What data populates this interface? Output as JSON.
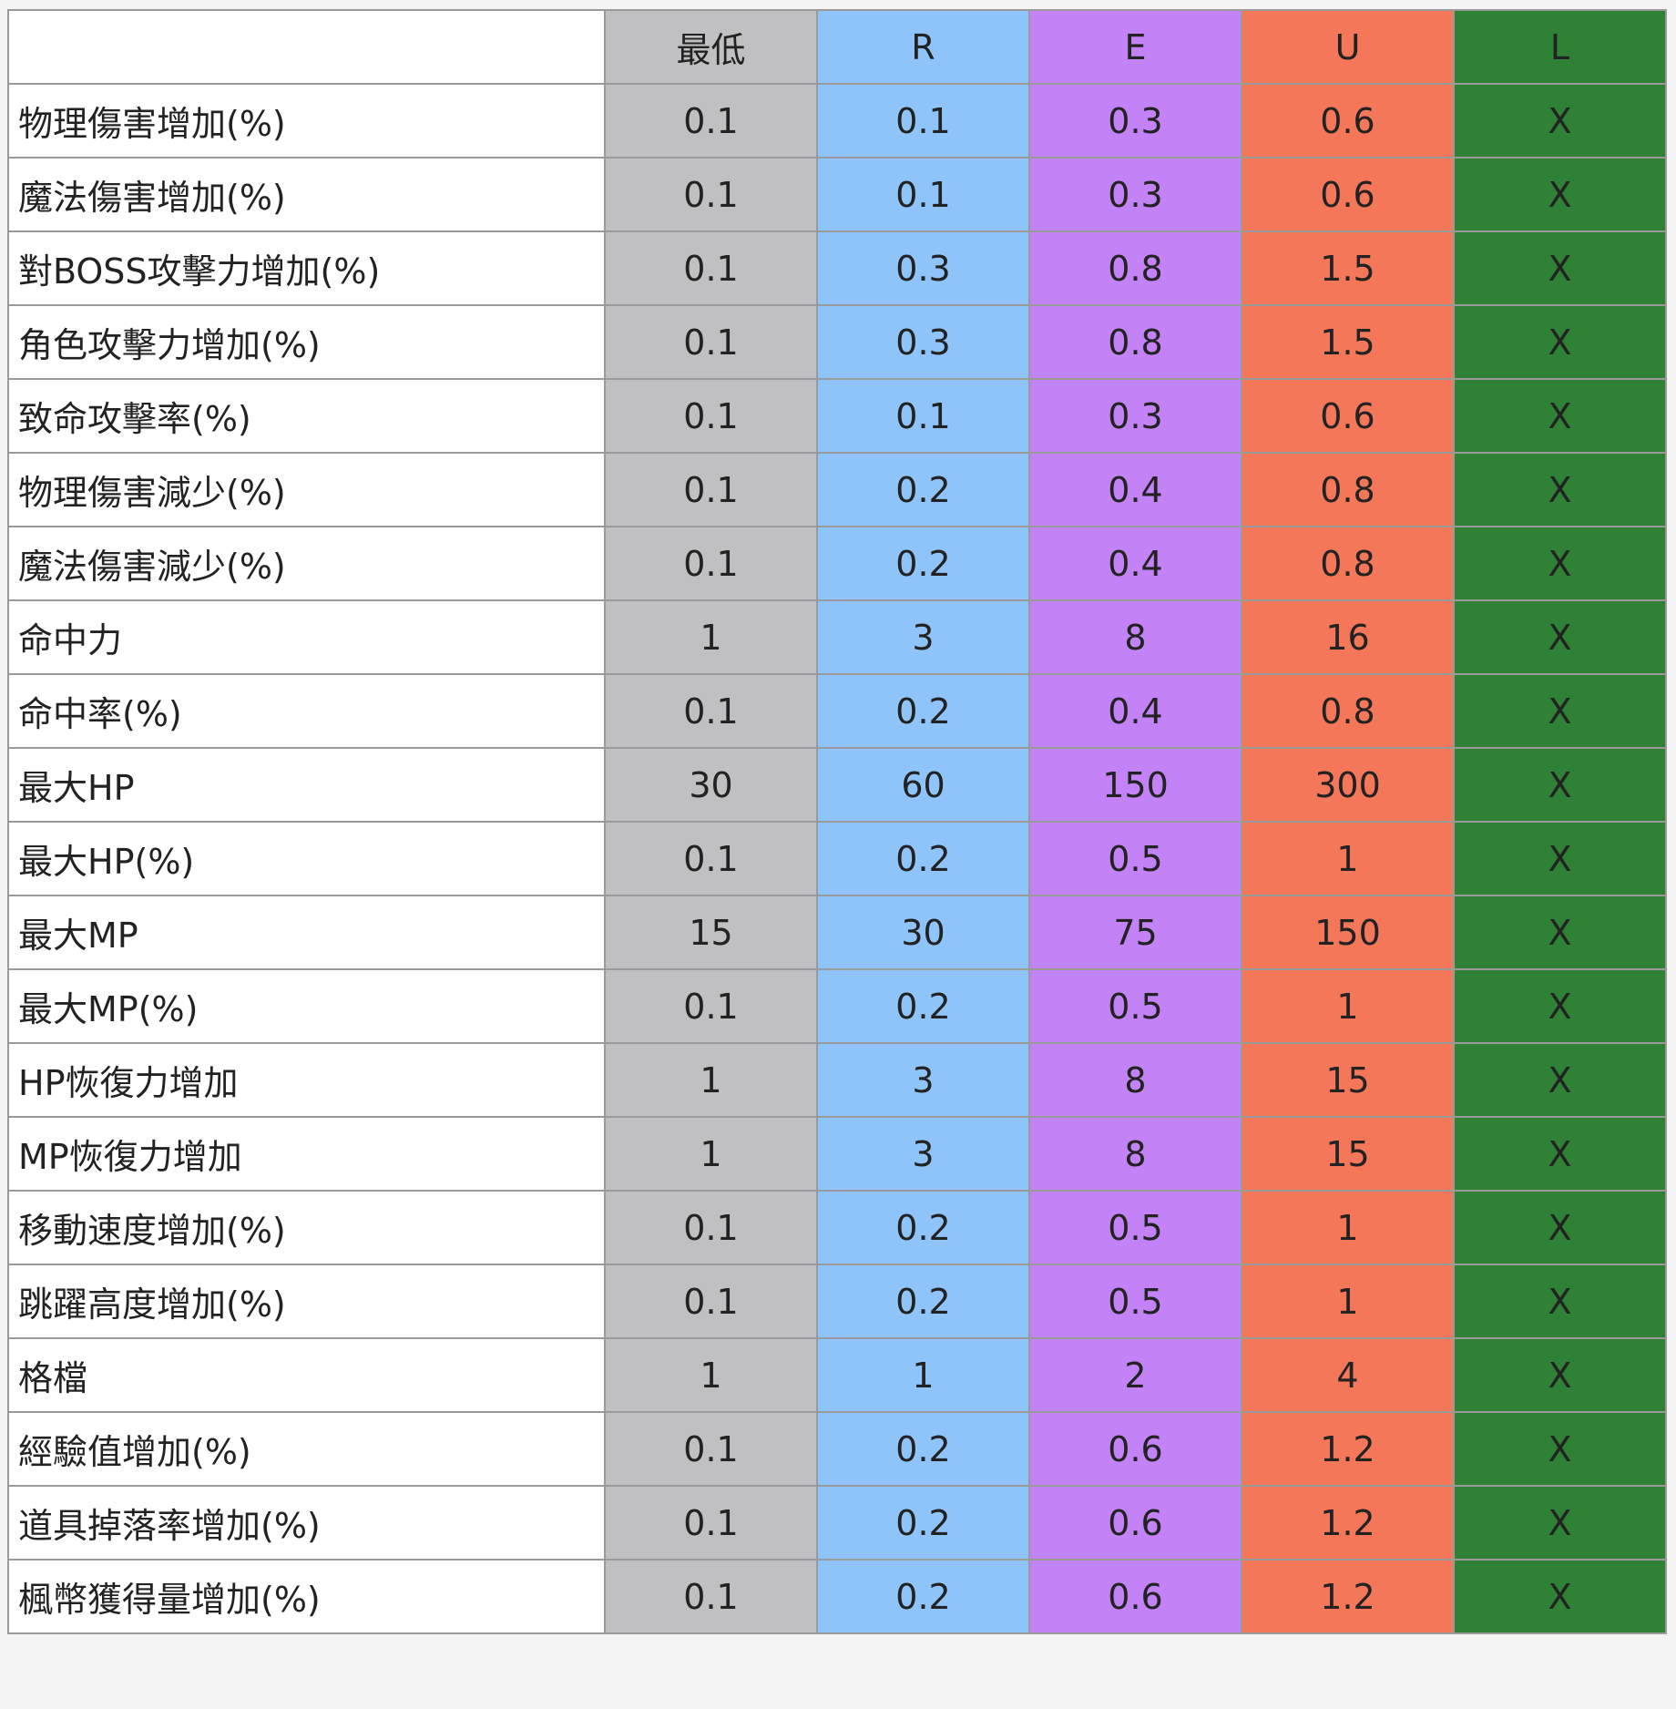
{
  "table": {
    "corner": "",
    "columns": [
      "最低",
      "R",
      "E",
      "U",
      "L"
    ],
    "column_colors": [
      "#c0bfc1",
      "#8fc4fb",
      "#c382f5",
      "#f5775a",
      "#2f8135"
    ],
    "highlight_color": "#f7bd13",
    "rows": [
      {
        "name": "物理傷害增加(%)",
        "values": [
          "0.1",
          "0.1",
          "0.3",
          "0.6",
          "X"
        ],
        "highlight": true
      },
      {
        "name": "魔法傷害增加(%)",
        "values": [
          "0.1",
          "0.1",
          "0.3",
          "0.6",
          "X"
        ],
        "highlight": true
      },
      {
        "name": "對BOSS攻擊力增加(%)",
        "values": [
          "0.1",
          "0.3",
          "0.8",
          "1.5",
          "X"
        ],
        "highlight": true
      },
      {
        "name": "角色攻擊力增加(%)",
        "values": [
          "0.1",
          "0.3",
          "0.8",
          "1.5",
          "X"
        ],
        "highlight": false
      },
      {
        "name": "致命攻擊率(%)",
        "values": [
          "0.1",
          "0.1",
          "0.3",
          "0.6",
          "X"
        ],
        "highlight": false
      },
      {
        "name": "物理傷害減少(%)",
        "values": [
          "0.1",
          "0.2",
          "0.4",
          "0.8",
          "X"
        ],
        "highlight": false
      },
      {
        "name": "魔法傷害減少(%)",
        "values": [
          "0.1",
          "0.2",
          "0.4",
          "0.8",
          "X"
        ],
        "highlight": false
      },
      {
        "name": "命中力",
        "values": [
          "1",
          "3",
          "8",
          "16",
          "X"
        ],
        "highlight": false
      },
      {
        "name": "命中率(%)",
        "values": [
          "0.1",
          "0.2",
          "0.4",
          "0.8",
          "X"
        ],
        "highlight": false
      },
      {
        "name": "最大HP",
        "values": [
          "30",
          "60",
          "150",
          "300",
          "X"
        ],
        "highlight": false
      },
      {
        "name": "最大HP(%)",
        "values": [
          "0.1",
          "0.2",
          "0.5",
          "1",
          "X"
        ],
        "highlight": false
      },
      {
        "name": "最大MP",
        "values": [
          "15",
          "30",
          "75",
          "150",
          "X"
        ],
        "highlight": false
      },
      {
        "name": "最大MP(%)",
        "values": [
          "0.1",
          "0.2",
          "0.5",
          "1",
          "X"
        ],
        "highlight": false
      },
      {
        "name": "HP恢復力增加",
        "values": [
          "1",
          "3",
          "8",
          "15",
          "X"
        ],
        "highlight": false
      },
      {
        "name": "MP恢復力增加",
        "values": [
          "1",
          "3",
          "8",
          "15",
          "X"
        ],
        "highlight": false
      },
      {
        "name": "移動速度增加(%)",
        "values": [
          "0.1",
          "0.2",
          "0.5",
          "1",
          "X"
        ],
        "highlight": false
      },
      {
        "name": "跳躍高度增加(%)",
        "values": [
          "0.1",
          "0.2",
          "0.5",
          "1",
          "X"
        ],
        "highlight": false
      },
      {
        "name": "格檔",
        "values": [
          "1",
          "1",
          "2",
          "4",
          "X"
        ],
        "highlight": false
      },
      {
        "name": "經驗值增加(%)",
        "values": [
          "0.1",
          "0.2",
          "0.6",
          "1.2",
          "X"
        ],
        "highlight": false
      },
      {
        "name": "道具掉落率增加(%)",
        "values": [
          "0.1",
          "0.2",
          "0.6",
          "1.2",
          "X"
        ],
        "highlight": false
      },
      {
        "name": "楓幣獲得量增加(%)",
        "values": [
          "0.1",
          "0.2",
          "0.6",
          "1.2",
          "X"
        ],
        "highlight": false
      }
    ]
  }
}
